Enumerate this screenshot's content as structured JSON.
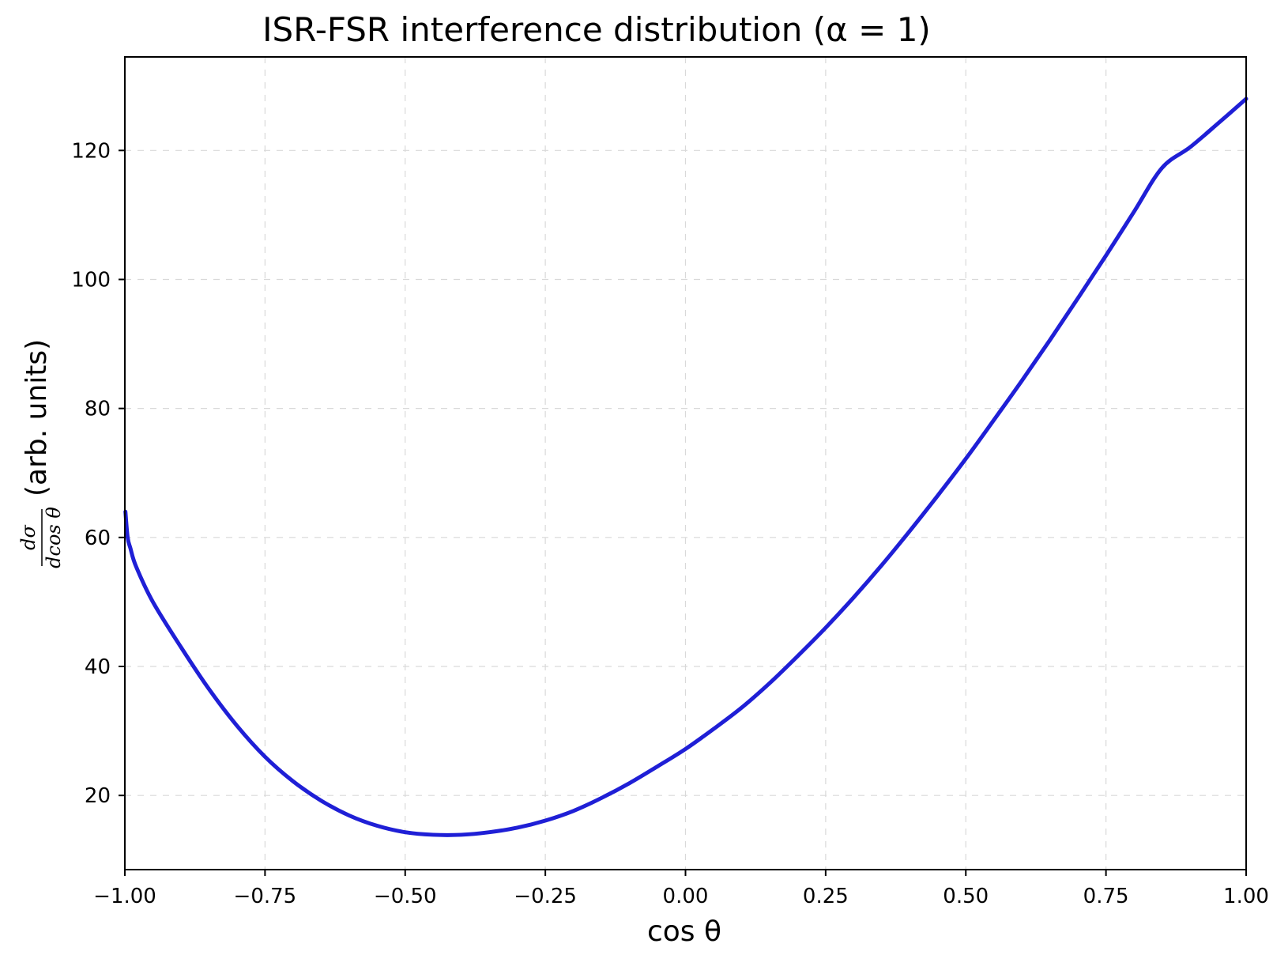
{
  "chart_data": {
    "type": "line",
    "title": "ISR-FSR interference distribution (α = 1)",
    "xlabel": "cos θ",
    "ylabel_fraction_numerator": "dσ",
    "ylabel_fraction_denominator": "dcos θ",
    "ylabel_text": "(arb. units)",
    "xlim": [
      -1.0,
      1.0
    ],
    "ylim": [
      8.5,
      134.5
    ],
    "x_ticks": [
      -1.0,
      -0.75,
      -0.5,
      -0.25,
      0.0,
      0.25,
      0.5,
      0.75,
      1.0
    ],
    "x_tick_labels": [
      "−1.00",
      "−0.75",
      "−0.50",
      "−0.25",
      "0.00",
      "0.25",
      "0.50",
      "0.75",
      "1.00"
    ],
    "y_ticks": [
      20,
      40,
      60,
      80,
      100,
      120
    ],
    "y_tick_labels": [
      "20",
      "40",
      "60",
      "80",
      "100",
      "120"
    ],
    "grid": true,
    "series": [
      {
        "color": "#1f1fd6",
        "x": [
          -0.999,
          -0.995,
          -0.99,
          -0.98,
          -0.95,
          -0.9,
          -0.85,
          -0.8,
          -0.75,
          -0.7,
          -0.65,
          -0.6,
          -0.55,
          -0.5,
          -0.45,
          -0.4,
          -0.35,
          -0.3,
          -0.25,
          -0.2,
          -0.15,
          -0.1,
          -0.05,
          0.0,
          0.05,
          0.1,
          0.15,
          0.2,
          0.25,
          0.3,
          0.35,
          0.4,
          0.45,
          0.5,
          0.55,
          0.6,
          0.65,
          0.7,
          0.75,
          0.8,
          0.85,
          0.9,
          0.95,
          1.0
        ],
        "y": [
          64,
          60,
          58.3,
          55.5,
          50,
          43,
          36.5,
          30.8,
          26,
          22.2,
          19.2,
          16.9,
          15.3,
          14.3,
          13.9,
          13.9,
          14.3,
          15,
          16.1,
          17.6,
          19.6,
          21.9,
          24.5,
          27.2,
          30.3,
          33.6,
          37.4,
          41.6,
          46,
          50.7,
          55.7,
          61,
          66.5,
          72.2,
          78.2,
          84.3,
          90.6,
          97.1,
          103.7,
          110.5,
          117.3,
          120.5,
          124.2,
          128
        ]
      }
    ]
  }
}
